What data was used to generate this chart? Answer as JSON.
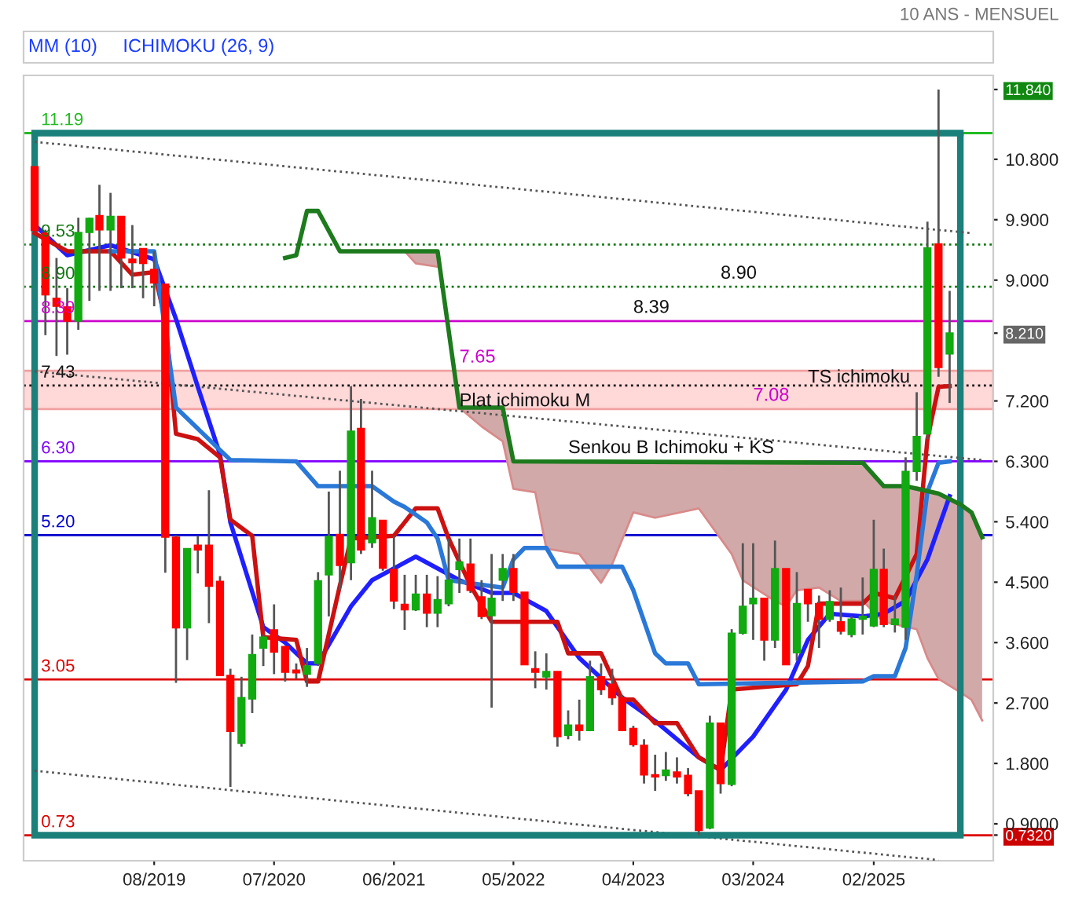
{
  "chart_data": {
    "type": "candlestick",
    "title": "10 ANS - MENSUEL",
    "x": [
      "2018-09",
      "2018-10",
      "2018-11",
      "2018-12",
      "2019-01",
      "2019-02",
      "2019-03",
      "2019-04",
      "2019-05",
      "2019-06",
      "2019-07",
      "2019-08",
      "2019-09",
      "2019-10",
      "2019-11",
      "2019-12",
      "2020-01",
      "2020-02",
      "2020-03",
      "2020-04",
      "2020-05",
      "2020-06",
      "2020-07",
      "2020-08",
      "2020-09",
      "2020-10",
      "2020-11",
      "2020-12",
      "2021-01",
      "2021-02",
      "2021-03",
      "2021-04",
      "2021-05",
      "2021-06",
      "2021-07",
      "2021-08",
      "2021-09",
      "2021-10",
      "2021-11",
      "2021-12",
      "2022-01",
      "2022-02",
      "2022-03",
      "2022-04",
      "2022-05",
      "2022-06",
      "2022-07",
      "2022-08",
      "2022-09",
      "2022-10",
      "2022-11",
      "2022-12",
      "2023-01",
      "2023-02",
      "2023-03",
      "2023-04",
      "2023-05",
      "2023-06",
      "2023-07",
      "2023-08",
      "2023-09",
      "2023-10",
      "2023-11",
      "2023-12",
      "2024-01",
      "2024-02",
      "2024-03",
      "2024-04",
      "2024-05",
      "2024-06",
      "2024-07",
      "2024-08",
      "2024-09",
      "2024-10",
      "2024-11",
      "2024-12",
      "2025-01",
      "2025-02",
      "2025-03",
      "2025-04",
      "2025-05",
      "2025-06",
      "2025-07",
      "2025-08",
      "2025-09"
    ],
    "ohlc": [
      [
        10.69,
        10.69,
        9.74,
        9.74
      ],
      [
        9.7,
        9.75,
        8.18,
        8.78
      ],
      [
        8.73,
        9.33,
        7.87,
        8.61
      ],
      [
        8.6,
        8.88,
        7.89,
        8.39
      ],
      [
        8.39,
        9.93,
        8.26,
        9.71
      ],
      [
        9.71,
        9.93,
        8.69,
        9.92
      ],
      [
        9.96,
        10.42,
        8.84,
        9.75
      ],
      [
        9.75,
        10.3,
        8.84,
        9.95
      ],
      [
        9.95,
        9.95,
        8.88,
        9.33
      ],
      [
        9.31,
        9.82,
        8.88,
        9.26
      ],
      [
        9.47,
        9.47,
        8.73,
        9.25
      ],
      [
        9.16,
        9.43,
        8.61,
        8.96
      ],
      [
        8.94,
        8.94,
        4.64,
        5.17
      ],
      [
        5.17,
        5.2,
        3.0,
        3.82
      ],
      [
        3.82,
        5.0,
        3.34,
        5.0
      ],
      [
        5.05,
        5.19,
        4.63,
        4.98
      ],
      [
        5.05,
        5.87,
        3.89,
        4.44
      ],
      [
        4.51,
        4.59,
        3.1,
        3.11
      ],
      [
        3.11,
        3.21,
        1.45,
        2.28
      ],
      [
        2.1,
        3.09,
        2.05,
        2.78
      ],
      [
        2.76,
        3.72,
        2.55,
        3.42
      ],
      [
        3.52,
        3.72,
        3.25,
        3.68
      ],
      [
        3.79,
        4.17,
        3.13,
        3.46
      ],
      [
        3.54,
        3.55,
        3.02,
        3.16
      ],
      [
        3.19,
        3.29,
        3.06,
        3.15
      ],
      [
        3.13,
        3.52,
        2.94,
        3.25
      ],
      [
        3.29,
        4.65,
        3.25,
        4.52
      ],
      [
        4.61,
        5.85,
        3.99,
        5.18
      ],
      [
        5.21,
        6.16,
        4.38,
        4.75
      ],
      [
        4.79,
        7.42,
        4.53,
        6.75
      ],
      [
        6.79,
        7.23,
        4.92,
        4.98
      ],
      [
        5.09,
        6.16,
        5.01,
        5.46
      ],
      [
        5.42,
        5.42,
        4.67,
        4.71
      ],
      [
        4.69,
        5.19,
        4.1,
        4.22
      ],
      [
        4.17,
        4.61,
        3.79,
        4.09
      ],
      [
        4.09,
        4.61,
        4.07,
        4.32
      ],
      [
        4.32,
        4.61,
        3.83,
        4.04
      ],
      [
        4.04,
        4.59,
        3.83,
        4.24
      ],
      [
        4.18,
        5.15,
        4.14,
        4.53
      ],
      [
        4.69,
        5.15,
        4.34,
        4.8
      ],
      [
        4.77,
        5.15,
        4.34,
        4.38
      ],
      [
        4.28,
        4.53,
        3.95,
        3.99
      ],
      [
        4.0,
        4.92,
        2.63,
        4.26
      ],
      [
        4.53,
        4.92,
        4.22,
        4.7
      ],
      [
        4.7,
        4.92,
        4.22,
        4.35
      ],
      [
        4.35,
        4.35,
        3.27,
        3.27
      ],
      [
        3.21,
        3.47,
        2.92,
        3.16
      ],
      [
        3.09,
        3.44,
        2.9,
        3.17
      ],
      [
        3.17,
        3.17,
        2.05,
        2.2
      ],
      [
        2.22,
        2.59,
        2.16,
        2.37
      ],
      [
        2.37,
        2.75,
        2.14,
        2.29
      ],
      [
        2.29,
        3.33,
        2.28,
        3.09
      ],
      [
        3.09,
        3.29,
        2.82,
        2.9
      ],
      [
        2.98,
        3.21,
        2.67,
        2.78
      ],
      [
        2.78,
        2.82,
        2.28,
        2.29
      ],
      [
        2.32,
        2.36,
        2.05,
        2.08
      ],
      [
        2.07,
        2.16,
        1.5,
        1.63
      ],
      [
        1.63,
        1.93,
        1.39,
        1.6
      ],
      [
        1.62,
        1.97,
        1.54,
        1.7
      ],
      [
        1.67,
        1.89,
        1.5,
        1.6
      ],
      [
        1.62,
        1.73,
        1.31,
        1.35
      ],
      [
        1.39,
        1.39,
        0.732,
        0.8
      ],
      [
        0.84,
        2.51,
        0.82,
        2.4
      ],
      [
        2.4,
        2.4,
        1.35,
        1.5
      ],
      [
        1.49,
        3.8,
        1.46,
        3.74
      ],
      [
        3.74,
        5.08,
        3.72,
        4.14
      ],
      [
        4.18,
        5.08,
        3.64,
        4.26
      ],
      [
        4.26,
        4.26,
        3.33,
        3.64
      ],
      [
        3.64,
        5.12,
        3.52,
        4.7
      ],
      [
        4.7,
        4.7,
        3.27,
        3.27
      ],
      [
        3.45,
        4.65,
        3.33,
        4.18
      ],
      [
        4.39,
        4.39,
        3.91,
        4.18
      ],
      [
        4.18,
        4.3,
        3.52,
        3.95
      ],
      [
        3.95,
        4.38,
        3.91,
        4.21
      ],
      [
        3.91,
        4.42,
        3.72,
        3.77
      ],
      [
        3.72,
        3.99,
        3.68,
        3.95
      ],
      [
        3.95,
        4.57,
        3.72,
        3.99
      ],
      [
        3.85,
        5.43,
        3.83,
        4.69
      ],
      [
        4.69,
        5.0,
        3.83,
        3.87
      ],
      [
        3.87,
        4.3,
        3.75,
        3.95
      ],
      [
        3.83,
        6.36,
        3.64,
        6.15
      ],
      [
        6.15,
        7.33,
        6.01,
        6.67
      ],
      [
        6.71,
        9.87,
        6.63,
        9.48
      ],
      [
        9.54,
        11.84,
        7.56,
        7.7
      ],
      [
        7.9,
        8.84,
        7.17,
        8.21
      ]
    ],
    "colors": [
      "#ff0000",
      "#ff0000",
      "#ff0000",
      "#ff0000",
      "#11aa11",
      "#11aa11",
      "#ff0000",
      "#11aa11",
      "#ff0000",
      "#ff0000",
      "#ff0000",
      "#ff0000",
      "#ff0000",
      "#ff0000",
      "#11aa11",
      "#ff0000",
      "#ff0000",
      "#ff0000",
      "#ff0000",
      "#11aa11",
      "#11aa11",
      "#11aa11",
      "#ff0000",
      "#ff0000",
      "#ff0000",
      "#11aa11",
      "#11aa11",
      "#11aa11",
      "#ff0000",
      "#11aa11",
      "#ff0000",
      "#11aa11",
      "#ff0000",
      "#ff0000",
      "#ff0000",
      "#11aa11",
      "#ff0000",
      "#11aa11",
      "#11aa11",
      "#11aa11",
      "#ff0000",
      "#ff0000",
      "#11aa11",
      "#11aa11",
      "#ff0000",
      "#ff0000",
      "#ff0000",
      "#11aa11",
      "#ff0000",
      "#11aa11",
      "#ff0000",
      "#11aa11",
      "#ff0000",
      "#ff0000",
      "#ff0000",
      "#ff0000",
      "#ff0000",
      "#ff0000",
      "#11aa11",
      "#ff0000",
      "#ff0000",
      "#ff0000",
      "#11aa11",
      "#ff0000",
      "#11aa11",
      "#11aa11",
      "#11aa11",
      "#ff0000",
      "#11aa11",
      "#ff0000",
      "#11aa11",
      "#ff0000",
      "#ff0000",
      "#11aa11",
      "#ff0000",
      "#11aa11",
      "#11aa11",
      "#11aa11",
      "#ff0000",
      "#11aa11",
      "#11aa11",
      "#11aa11",
      "#11aa11",
      "#ff0000",
      "#11aa11"
    ],
    "series": [
      {
        "type": "line",
        "color": "#d88a8a",
        "x": [
          "2021-07",
          "2021-08",
          "2021-10",
          "2021-11",
          "2021-12",
          "2022-02",
          "2022-04",
          "2022-05",
          "2022-07",
          "2022-08",
          "2022-11",
          "2023-01",
          "2023-02",
          "2023-04",
          "2023-06",
          "2023-10",
          "2024-01",
          "2024-02",
          "2024-05",
          "2024-06",
          "2024-07",
          "2024-09",
          "2024-11",
          "2025-01",
          "2025-03",
          "2025-06",
          "2025-07",
          "2025-08",
          "2025-10",
          "2025-11",
          "2025-12"
        ],
        "values": [
          9.43,
          9.25,
          9.2,
          null,
          7.1,
          6.82,
          6.6,
          5.89,
          5.84,
          5.0,
          4.92,
          4.49,
          4.77,
          5.54,
          5.46,
          5.6,
          4.92,
          4.53,
          4.22,
          4.14,
          4.38,
          4.42,
          4.22,
          4.22,
          3.91,
          3.8,
          3.37,
          3.06,
          2.86,
          2.75,
          2.44
        ],
        "lower": [
          9.43,
          9.25,
          9.2,
          null,
          7.1,
          6.82,
          6.6,
          5.89,
          5.84,
          5.0,
          4.92,
          4.49,
          4.77,
          5.54,
          5.46,
          5.6,
          4.92,
          4.53,
          4.22,
          4.14,
          4.38,
          4.42,
          4.22,
          4.22,
          3.91,
          3.8,
          3.37,
          3.06,
          2.86,
          2.75,
          2.44
        ],
        "upper": [
          9.43,
          9.43,
          9.43,
          null,
          7.1,
          7.1,
          7.1,
          6.3,
          6.3,
          6.3,
          6.3,
          6.3,
          6.3,
          6.3,
          6.3,
          6.3,
          6.3,
          6.3,
          6.3,
          6.3,
          6.3,
          6.3,
          6.3,
          6.28,
          5.93,
          5.93,
          5.9,
          5.82,
          5.66,
          5.54,
          5.17
        ]
      },
      {
        "type": "line",
        "color": "#555555",
        "line_style": "dotted",
        "x": [
          "2018-09",
          "2025-11"
        ],
        "values": [
          11.06,
          9.7
        ]
      },
      {
        "type": "line",
        "color": "#555555",
        "line_style": "dotted",
        "x": [
          "2018-09",
          "2025-12"
        ],
        "values": [
          7.64,
          6.32
        ]
      },
      {
        "type": "line",
        "color": "#555555",
        "line_style": "dotted",
        "x": [
          "2018-09",
          "2025-08"
        ],
        "values": [
          1.69,
          0.36
        ]
      },
      {
        "type": "line",
        "color": "#1f1fff",
        "x": [
          "2018-09",
          "2018-12",
          "2019-04",
          "2019-08",
          "2019-10",
          "2019-12",
          "2020-02",
          "2020-03",
          "2020-06",
          "2020-08",
          "2020-10",
          "2020-11",
          "2021-02",
          "2021-04",
          "2021-08",
          "2021-12",
          "2022-03",
          "2022-05",
          "2022-08",
          "2022-11",
          "2023-03",
          "2023-06",
          "2023-10",
          "2023-12",
          "2024-03",
          "2024-06",
          "2024-08",
          "2024-10",
          "2025-01",
          "2025-03",
          "2025-05",
          "2025-07",
          "2025-09"
        ],
        "values": [
          9.82,
          9.37,
          9.52,
          9.31,
          8.42,
          7.41,
          6.4,
          5.39,
          3.83,
          3.6,
          3.29,
          3.29,
          4.14,
          4.53,
          4.88,
          4.53,
          4.34,
          4.34,
          4.07,
          3.37,
          2.78,
          2.43,
          1.89,
          1.7,
          2.2,
          2.9,
          3.64,
          4.03,
          3.99,
          4.03,
          4.22,
          4.84,
          5.78
        ]
      },
      {
        "type": "line",
        "color": "#cc1111",
        "x": [
          "2018-09",
          "2018-12",
          "2019-04",
          "2019-06",
          "2019-08",
          "2019-09",
          "2019-10",
          "2019-12",
          "2020-02",
          "2020-03",
          "2020-05",
          "2020-06",
          "2020-09",
          "2020-10",
          "2020-11",
          "2021-01",
          "2021-02",
          "2021-06",
          "2021-08",
          "2021-10",
          "2021-11",
          "2022-01",
          "2022-03",
          "2022-09",
          "2022-10",
          "2023-01",
          "2023-03",
          "2023-04",
          "2023-06",
          "2023-08",
          "2023-10",
          "2023-12",
          "2024-01",
          "2024-07",
          "2024-08",
          "2024-09",
          "2025-01",
          "2025-02",
          "2025-04",
          "2025-06",
          "2025-07",
          "2025-08",
          "2025-09"
        ],
        "values": [
          9.7,
          9.43,
          9.43,
          9.08,
          9.12,
          8.42,
          6.71,
          6.63,
          6.36,
          5.43,
          5.19,
          3.68,
          3.64,
          3.02,
          3.02,
          4.45,
          5.15,
          5.19,
          5.6,
          5.6,
          5.15,
          4.45,
          3.91,
          3.91,
          3.44,
          3.44,
          2.75,
          2.75,
          2.4,
          2.4,
          1.89,
          1.7,
          2.9,
          2.98,
          3.25,
          4.18,
          4.18,
          4.34,
          4.26,
          4.92,
          6.63,
          7.41,
          7.42
        ]
      },
      {
        "type": "line",
        "color": "#2a78d8",
        "x": [
          "2019-04",
          "2019-08",
          "2019-10",
          "2020-03",
          "2020-09",
          "2020-11",
          "2021-04",
          "2021-06",
          "2021-07",
          "2021-09",
          "2021-10",
          "2021-11",
          "2022-04",
          "2022-05",
          "2022-06",
          "2022-08",
          "2022-09",
          "2023-03",
          "2023-04",
          "2023-06",
          "2023-07",
          "2023-09",
          "2023-10",
          "2025-01",
          "2025-02",
          "2025-04",
          "2025-05",
          "2025-06",
          "2025-07",
          "2025-08",
          "2025-09"
        ],
        "values": [
          9.43,
          9.43,
          7.1,
          6.32,
          6.3,
          5.93,
          5.93,
          5.7,
          5.62,
          5.39,
          5.15,
          4.53,
          4.42,
          4.84,
          5.01,
          5.01,
          4.73,
          4.73,
          4.38,
          3.44,
          3.29,
          3.29,
          2.98,
          3.02,
          3.1,
          3.1,
          3.52,
          4.61,
          5.85,
          6.28,
          6.3
        ]
      },
      {
        "type": "line",
        "color": "#1d7a1d",
        "x": [
          "2020-08",
          "2020-09",
          "2020-10",
          "2020-11",
          "2021-01",
          "2021-10",
          "2021-12",
          "2022-04",
          "2022-05",
          "2025-01",
          "2025-03",
          "2025-05",
          "2025-08",
          "2025-10",
          "2025-11",
          "2025-12"
        ],
        "values": [
          9.33,
          9.37,
          10.03,
          10.03,
          9.43,
          9.43,
          7.1,
          7.1,
          6.3,
          6.28,
          5.93,
          5.93,
          5.82,
          5.66,
          5.54,
          5.17
        ]
      },
      {
        "type": "line",
        "color": "#1b7f7a",
        "x": [
          "2018-09",
          "2025-10"
        ],
        "values": [
          11.19,
          11.19
        ]
      },
      {
        "type": "line",
        "color": "#1b7f7a",
        "x": [
          "2018-09",
          "2025-10"
        ],
        "values": [
          0.73,
          0.73
        ]
      }
    ],
    "xlim": [
      "2018-08",
      "2026-01"
    ],
    "xticks": [
      {
        "value": "2019-08",
        "label": "08/2019"
      },
      {
        "value": "2020-07",
        "label": "07/2020"
      },
      {
        "value": "2021-06",
        "label": "06/2021"
      },
      {
        "value": "2022-05",
        "label": "05/2022"
      },
      {
        "value": "2023-04",
        "label": "04/2023"
      },
      {
        "value": "2024-03",
        "label": "03/2024"
      },
      {
        "value": "2025-02",
        "label": "02/2025"
      }
    ],
    "ylim": [
      0.35,
      12.05
    ],
    "yticks": [
      {
        "value": 0.732,
        "label": "0.7320"
      },
      {
        "value": 8.21,
        "label": "8.210"
      },
      {
        "value": 11.84,
        "label": "11.840"
      },
      {
        "value": 0.9,
        "label": "0.9000"
      },
      {
        "value": 1.8,
        "label": "1.800"
      },
      {
        "value": 2.7,
        "label": "2.700"
      },
      {
        "value": 3.6,
        "label": "3.600"
      },
      {
        "value": 4.5,
        "label": "4.500"
      },
      {
        "value": 5.4,
        "label": "5.400"
      },
      {
        "value": 6.3,
        "label": "6.300"
      },
      {
        "value": 7.2,
        "label": "7.200"
      },
      {
        "value": 9.0,
        "label": "9.000"
      },
      {
        "value": 9.9,
        "label": "9.900"
      },
      {
        "value": 10.8,
        "label": "10.800"
      }
    ],
    "ref_lines": [
      {
        "axis": "y",
        "value": 11.19,
        "label": "11.19",
        "color": "#22bb22",
        "line_style": "solid"
      },
      {
        "axis": "y",
        "value": 9.53,
        "label": "9.53",
        "color": "#117711",
        "line_style": "dotted"
      },
      {
        "axis": "y",
        "value": 8.9,
        "label": "8.90",
        "color": "#117711",
        "line_style": "dotted"
      },
      {
        "axis": "y",
        "value": 8.39,
        "label": "8.39",
        "color": "#cc00cc",
        "line_style": "solid"
      },
      {
        "axis": "y",
        "value": 7.43,
        "label": "7.43",
        "color": "#111111",
        "line_style": "dotted"
      },
      {
        "axis": "y",
        "value": 6.3,
        "label": "6.30",
        "color": "#8000ff",
        "line_style": "solid"
      },
      {
        "axis": "y",
        "value": 5.2,
        "label": "5.20",
        "color": "#0000cc",
        "line_style": "solid"
      },
      {
        "axis": "y",
        "value": 3.05,
        "label": "3.05",
        "color": "#dd0000",
        "line_style": "solid"
      },
      {
        "axis": "y",
        "value": 0.73,
        "label": "0.73",
        "color": "#dd0000",
        "line_style": "solid"
      },
      {
        "axis": "x",
        "value": "2018-09",
        "color": "#1b7f7a",
        "line_style": "solid"
      },
      {
        "axis": "x",
        "value": "2025-10",
        "color": "#1b7f7a",
        "line_style": "solid"
      }
    ],
    "bands": [
      {
        "axis": "y",
        "from": 7.08,
        "to": 7.65,
        "color": "#ffd8d8"
      }
    ],
    "annotations": [
      "MM (10)",
      "ICHIMOKU (26, 9)",
      {
        "text": "8.90",
        "x": "2023-12",
        "y": 8.9
      },
      {
        "text": "8.39",
        "x": "2023-04",
        "y": 8.39
      },
      {
        "text": "7.65",
        "x": "2021-12",
        "y": 7.65
      },
      {
        "text": "7.08",
        "x": "2024-03",
        "y": 7.08
      },
      {
        "text": "Plat ichimoku M",
        "x": "2021-12",
        "y": 7.0
      },
      {
        "text": "Senkou B Ichimoku + KS",
        "x": "2022-10",
        "y": 6.3
      },
      {
        "text": "TS ichimoku",
        "x": "2024-08",
        "y": 7.35
      }
    ]
  }
}
